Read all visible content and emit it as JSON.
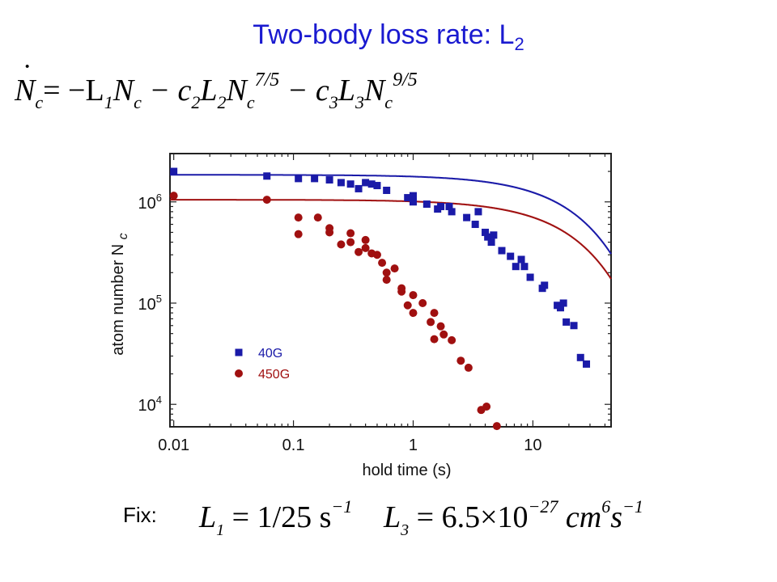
{
  "slide": {
    "title_main": "Two-body loss rate: L",
    "title_sub": "2",
    "equation": {
      "lhs": "N",
      "lhs_sub": "c",
      "term1": "= −L",
      "term1_sub": "1",
      "term1_tail": "N",
      "term1_tail_sub": "c",
      "term2": " − c",
      "term2_sub1": "2",
      "term2_mid": "L",
      "term2_sub2": "2",
      "term2_tail": "N",
      "term2_tail_sub": "c",
      "term2_exp": "7/5",
      "term3": " − c",
      "term3_sub1": "3",
      "term3_mid": "L",
      "term3_sub2": "3",
      "term3_tail": "N",
      "term3_tail_sub": "c",
      "term3_exp": "9/5"
    },
    "fix": {
      "label": "Fix:",
      "l1_name": "L",
      "l1_sub": "1",
      "l1_value": " = 1/25 s",
      "l1_exp": "−1",
      "l3_name": "L",
      "l3_sub": "3",
      "l3_value": " = 6.5×10",
      "l3_exp": "−27",
      "l3_unit": " cm",
      "l3_unit_exp": "6",
      "l3_unit2": "s",
      "l3_unit2_exp": "−1"
    }
  },
  "colors": {
    "title": "#1a1ad0",
    "series_40G": "#1a1aa8",
    "series_450G": "#a01010"
  },
  "chart_data": {
    "type": "scatter",
    "xscale": "log",
    "yscale": "log",
    "xlim": [
      0.0093,
      45
    ],
    "ylim": [
      6000,
      3000000
    ],
    "xlabel": "hold time (s)",
    "ylabel": "atom number N",
    "ylabel_sub": "c",
    "x_ticks": [
      {
        "value": 0.01,
        "label": "0.01"
      },
      {
        "value": 0.1,
        "label": "0.1"
      },
      {
        "value": 1,
        "label": "1"
      },
      {
        "value": 10,
        "label": "10"
      }
    ],
    "y_ticks": [
      {
        "value": 10000,
        "base": "10",
        "exp": "4"
      },
      {
        "value": 100000,
        "base": "10",
        "exp": "5"
      },
      {
        "value": 1000000,
        "base": "10",
        "exp": "6"
      }
    ],
    "legend": {
      "placement": "lower-left"
    },
    "series": [
      {
        "name": "40G",
        "marker": "square",
        "color": "#1a1aa8",
        "points": [
          [
            0.01,
            2000000
          ],
          [
            0.06,
            1800000
          ],
          [
            0.11,
            1700000
          ],
          [
            0.15,
            1700000
          ],
          [
            0.2,
            1650000
          ],
          [
            0.25,
            1550000
          ],
          [
            0.3,
            1500000
          ],
          [
            0.35,
            1350000
          ],
          [
            0.4,
            1550000
          ],
          [
            0.45,
            1500000
          ],
          [
            0.5,
            1450000
          ],
          [
            0.6,
            1300000
          ],
          [
            0.9,
            1100000
          ],
          [
            1.0,
            1000000
          ],
          [
            1.0,
            1150000
          ],
          [
            1.3,
            950000
          ],
          [
            1.6,
            850000
          ],
          [
            1.7,
            900000
          ],
          [
            2.0,
            900000
          ],
          [
            2.1,
            800000
          ],
          [
            2.8,
            700000
          ],
          [
            3.3,
            600000
          ],
          [
            3.5,
            800000
          ],
          [
            4.0,
            500000
          ],
          [
            4.2,
            450000
          ],
          [
            4.5,
            400000
          ],
          [
            4.7,
            470000
          ],
          [
            5.5,
            330000
          ],
          [
            6.5,
            290000
          ],
          [
            7.2,
            230000
          ],
          [
            8.0,
            270000
          ],
          [
            8.5,
            230000
          ],
          [
            9.5,
            180000
          ],
          [
            12.0,
            140000
          ],
          [
            12.5,
            150000
          ],
          [
            16.0,
            95000
          ],
          [
            17.0,
            90000
          ],
          [
            18.0,
            100000
          ],
          [
            19.0,
            65000
          ],
          [
            22.0,
            60000
          ],
          [
            25.0,
            29000
          ],
          [
            28.0,
            25000
          ]
        ]
      },
      {
        "name": "450G",
        "marker": "circle",
        "color": "#a01010",
        "points": [
          [
            0.01,
            1150000
          ],
          [
            0.06,
            1050000
          ],
          [
            0.11,
            700000
          ],
          [
            0.11,
            480000
          ],
          [
            0.16,
            700000
          ],
          [
            0.2,
            550000
          ],
          [
            0.2,
            500000
          ],
          [
            0.25,
            380000
          ],
          [
            0.3,
            490000
          ],
          [
            0.3,
            400000
          ],
          [
            0.35,
            320000
          ],
          [
            0.4,
            350000
          ],
          [
            0.4,
            420000
          ],
          [
            0.45,
            310000
          ],
          [
            0.5,
            300000
          ],
          [
            0.55,
            250000
          ],
          [
            0.6,
            200000
          ],
          [
            0.6,
            170000
          ],
          [
            0.7,
            220000
          ],
          [
            0.8,
            140000
          ],
          [
            0.8,
            130000
          ],
          [
            0.9,
            95000
          ],
          [
            1.0,
            120000
          ],
          [
            1.0,
            80000
          ],
          [
            1.2,
            100000
          ],
          [
            1.4,
            65000
          ],
          [
            1.5,
            80000
          ],
          [
            1.5,
            44000
          ],
          [
            1.7,
            59000
          ],
          [
            1.8,
            49000
          ],
          [
            2.1,
            43000
          ],
          [
            2.5,
            27000
          ],
          [
            2.9,
            23000
          ],
          [
            3.7,
            8800
          ],
          [
            4.1,
            9500
          ],
          [
            5.0,
            6100
          ]
        ]
      }
    ],
    "fits": [
      {
        "series": "40G",
        "n0": 1850000,
        "L2_expr_k": 0.12
      },
      {
        "series": "450G",
        "n0": 1050000,
        "L2_expr_k": 0.53
      }
    ]
  }
}
